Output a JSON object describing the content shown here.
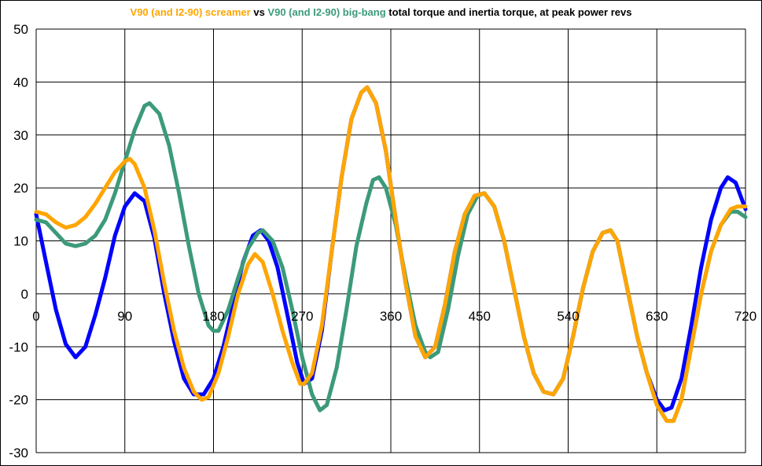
{
  "title": {
    "part1": "V90 (and I2-90) screamer",
    "part2": " vs ",
    "part3": "V90 (and I2-90) big-bang",
    "part4": " total torque and inertia torque, at peak power revs",
    "color1": "#ffa500",
    "color2": "#000000",
    "color3": "#3c9a7a",
    "color4": "#000000"
  },
  "chart_data": {
    "type": "line",
    "title": "V90 (and I2-90) screamer vs V90 (and I2-90) big-bang total torque and inertia torque, at peak power revs",
    "xlim": [
      0,
      720
    ],
    "ylim": [
      -30,
      50
    ],
    "x_ticks": [
      0,
      90,
      180,
      270,
      360,
      450,
      540,
      630,
      720
    ],
    "y_ticks": [
      50,
      40,
      30,
      20,
      10,
      0,
      -10,
      -20,
      -30
    ],
    "grid": true,
    "series": [
      {
        "color": "#0000ff",
        "points": [
          [
            0,
            15
          ],
          [
            10,
            6
          ],
          [
            20,
            -3
          ],
          [
            30,
            -9.5
          ],
          [
            40,
            -12
          ],
          [
            50,
            -10
          ],
          [
            60,
            -4
          ],
          [
            70,
            3
          ],
          [
            80,
            11
          ],
          [
            90,
            16.5
          ],
          [
            100,
            19
          ],
          [
            110,
            17.5
          ],
          [
            120,
            10.5
          ],
          [
            130,
            0
          ],
          [
            140,
            -9
          ],
          [
            150,
            -16
          ],
          [
            160,
            -19
          ],
          [
            170,
            -19
          ],
          [
            180,
            -16
          ],
          [
            190,
            -10
          ],
          [
            200,
            -2
          ],
          [
            210,
            6
          ],
          [
            220,
            11
          ],
          [
            228,
            12
          ],
          [
            236,
            10
          ],
          [
            245,
            5
          ],
          [
            255,
            -4
          ],
          [
            265,
            -13
          ],
          [
            272,
            -17
          ],
          [
            280,
            -16
          ],
          [
            290,
            -7
          ],
          [
            300,
            8
          ],
          [
            310,
            22
          ],
          [
            320,
            33
          ],
          [
            330,
            38
          ],
          [
            336,
            39
          ],
          [
            345,
            36
          ],
          [
            355,
            27
          ],
          [
            365,
            14
          ],
          [
            375,
            2
          ],
          [
            385,
            -8
          ],
          [
            395,
            -12
          ],
          [
            405,
            -10
          ],
          [
            415,
            -2
          ],
          [
            425,
            8
          ],
          [
            435,
            15
          ],
          [
            445,
            18.5
          ],
          [
            455,
            19
          ],
          [
            465,
            16.5
          ],
          [
            475,
            10
          ],
          [
            485,
            1
          ],
          [
            495,
            -8
          ],
          [
            505,
            -15
          ],
          [
            515,
            -18.5
          ],
          [
            525,
            -19
          ],
          [
            535,
            -16
          ],
          [
            545,
            -8
          ],
          [
            555,
            1
          ],
          [
            565,
            8
          ],
          [
            575,
            11.5
          ],
          [
            583,
            12
          ],
          [
            590,
            10
          ],
          [
            600,
            1
          ],
          [
            610,
            -8
          ],
          [
            620,
            -15
          ],
          [
            630,
            -20
          ],
          [
            638,
            -22
          ],
          [
            645,
            -21.5
          ],
          [
            655,
            -16
          ],
          [
            665,
            -6
          ],
          [
            675,
            5
          ],
          [
            685,
            14
          ],
          [
            695,
            20
          ],
          [
            702,
            22
          ],
          [
            710,
            21
          ],
          [
            720,
            16
          ]
        ]
      },
      {
        "color": "#3c9a7a",
        "points": [
          [
            0,
            14
          ],
          [
            10,
            13.5
          ],
          [
            20,
            11.5
          ],
          [
            30,
            9.5
          ],
          [
            40,
            9
          ],
          [
            50,
            9.5
          ],
          [
            60,
            11
          ],
          [
            70,
            14
          ],
          [
            80,
            19
          ],
          [
            90,
            25
          ],
          [
            100,
            31
          ],
          [
            110,
            35.5
          ],
          [
            115,
            36
          ],
          [
            125,
            34
          ],
          [
            135,
            28
          ],
          [
            145,
            19
          ],
          [
            155,
            9
          ],
          [
            165,
            0
          ],
          [
            175,
            -6
          ],
          [
            180,
            -7
          ],
          [
            185,
            -7
          ],
          [
            195,
            -3
          ],
          [
            205,
            3
          ],
          [
            215,
            8.5
          ],
          [
            225,
            11.5
          ],
          [
            230,
            12
          ],
          [
            240,
            10
          ],
          [
            250,
            5
          ],
          [
            260,
            -3
          ],
          [
            270,
            -12
          ],
          [
            280,
            -19
          ],
          [
            288,
            -22
          ],
          [
            295,
            -21
          ],
          [
            305,
            -14
          ],
          [
            315,
            -3
          ],
          [
            325,
            9
          ],
          [
            335,
            17
          ],
          [
            342,
            21.5
          ],
          [
            348,
            22
          ],
          [
            355,
            20
          ],
          [
            365,
            13
          ],
          [
            375,
            3
          ],
          [
            385,
            -6
          ],
          [
            395,
            -11
          ],
          [
            400,
            -12
          ],
          [
            408,
            -11
          ],
          [
            418,
            -3
          ],
          [
            428,
            7
          ],
          [
            438,
            15
          ],
          [
            448,
            18.5
          ],
          [
            455,
            19
          ],
          [
            465,
            16.5
          ],
          [
            475,
            10
          ],
          [
            485,
            1
          ],
          [
            495,
            -8
          ],
          [
            505,
            -15
          ],
          [
            515,
            -18.5
          ],
          [
            525,
            -19
          ],
          [
            535,
            -16
          ],
          [
            545,
            -8
          ],
          [
            555,
            1
          ],
          [
            565,
            8
          ],
          [
            575,
            11.5
          ],
          [
            583,
            12
          ],
          [
            590,
            10
          ],
          [
            600,
            1
          ],
          [
            610,
            -8
          ],
          [
            620,
            -15
          ],
          [
            630,
            -21
          ],
          [
            640,
            -24
          ],
          [
            647,
            -24
          ],
          [
            655,
            -20
          ],
          [
            665,
            -10
          ],
          [
            675,
            0
          ],
          [
            685,
            8
          ],
          [
            695,
            13
          ],
          [
            705,
            15.5
          ],
          [
            712,
            15.5
          ],
          [
            720,
            14.5
          ]
        ]
      },
      {
        "color": "#ffa500",
        "points": [
          [
            0,
            15.5
          ],
          [
            10,
            15
          ],
          [
            20,
            13.5
          ],
          [
            30,
            12.5
          ],
          [
            40,
            13
          ],
          [
            50,
            14.5
          ],
          [
            60,
            17
          ],
          [
            70,
            20
          ],
          [
            80,
            23
          ],
          [
            90,
            25
          ],
          [
            95,
            25.5
          ],
          [
            100,
            24.5
          ],
          [
            110,
            20
          ],
          [
            120,
            12
          ],
          [
            130,
            2
          ],
          [
            140,
            -7
          ],
          [
            150,
            -14
          ],
          [
            160,
            -18.5
          ],
          [
            168,
            -20
          ],
          [
            175,
            -19.5
          ],
          [
            185,
            -15
          ],
          [
            195,
            -8
          ],
          [
            205,
            0
          ],
          [
            215,
            5.5
          ],
          [
            222,
            7.5
          ],
          [
            230,
            6
          ],
          [
            240,
            0
          ],
          [
            250,
            -7
          ],
          [
            260,
            -13
          ],
          [
            268,
            -17
          ],
          [
            272,
            -17
          ],
          [
            280,
            -15
          ],
          [
            290,
            -6
          ],
          [
            300,
            8
          ],
          [
            310,
            22
          ],
          [
            320,
            33
          ],
          [
            330,
            38
          ],
          [
            336,
            39
          ],
          [
            345,
            36
          ],
          [
            355,
            27
          ],
          [
            365,
            14
          ],
          [
            375,
            2
          ],
          [
            385,
            -8
          ],
          [
            395,
            -12
          ],
          [
            405,
            -10
          ],
          [
            415,
            -2
          ],
          [
            425,
            8
          ],
          [
            435,
            15
          ],
          [
            445,
            18.5
          ],
          [
            455,
            19
          ],
          [
            465,
            16.5
          ],
          [
            475,
            10
          ],
          [
            485,
            1
          ],
          [
            495,
            -8
          ],
          [
            505,
            -15
          ],
          [
            515,
            -18.5
          ],
          [
            525,
            -19
          ],
          [
            535,
            -16
          ],
          [
            545,
            -8
          ],
          [
            555,
            1
          ],
          [
            565,
            8
          ],
          [
            575,
            11.5
          ],
          [
            583,
            12
          ],
          [
            590,
            10
          ],
          [
            600,
            1
          ],
          [
            610,
            -8
          ],
          [
            620,
            -15
          ],
          [
            630,
            -21
          ],
          [
            640,
            -24
          ],
          [
            647,
            -24
          ],
          [
            655,
            -20
          ],
          [
            665,
            -10
          ],
          [
            675,
            0
          ],
          [
            685,
            8
          ],
          [
            695,
            13
          ],
          [
            705,
            16
          ],
          [
            712,
            16.5
          ],
          [
            720,
            16.5
          ]
        ]
      }
    ]
  }
}
